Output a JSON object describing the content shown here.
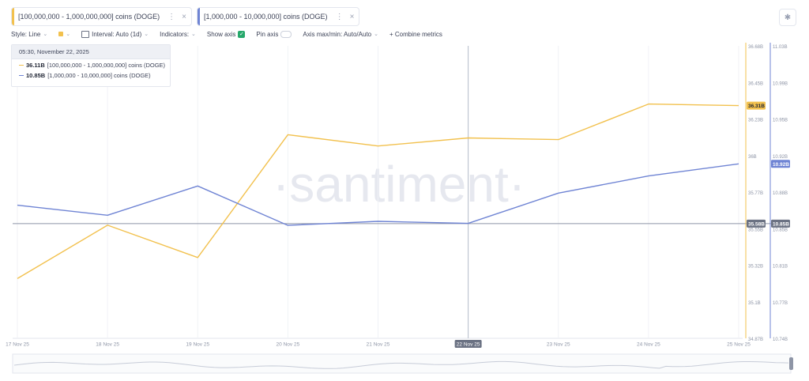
{
  "tabs": [
    {
      "label": "[100,000,000 - 1,000,000,000] coins (DOGE)",
      "color": "#f2c14e",
      "menu": "⋮",
      "close": "×"
    },
    {
      "label": "[1,000,000 - 10,000,000] coins (DOGE)",
      "color": "#6f84d4",
      "menu": "⋮",
      "close": "×"
    }
  ],
  "toolbar": {
    "style_label": "Style: Line",
    "interval_label": "Interval: Auto (1d)",
    "indicators_label": "Indicators:",
    "show_axis_label": "Show axis",
    "pin_axis_label": "Pin axis",
    "axis_maxmin_label": "Axis max/min: Auto/Auto",
    "combine_label": "+ Combine metrics",
    "check_glyph": "✓"
  },
  "settings_icon": "gear-icon",
  "tooltip": {
    "date": "05:30, November 22, 2025",
    "rows": [
      {
        "value": "36.11B",
        "label": "[100,000,000 - 1,000,000,000] coins (DOGE)",
        "color": "#f2c14e"
      },
      {
        "value": "10.85B",
        "label": "[1,000,000 - 10,000,000] coins (DOGE)",
        "color": "#6f84d4"
      }
    ]
  },
  "watermark": "·santiment·",
  "chart_data": {
    "type": "line",
    "categories": [
      "17 Nov 25",
      "18 Nov 25",
      "19 Nov 25",
      "20 Nov 25",
      "21 Nov 25",
      "22 Nov 25",
      "23 Nov 25",
      "24 Nov 25",
      "25 Nov 25"
    ],
    "series": [
      {
        "name": "[100,000,000 - 1,000,000,000] coins (DOGE)",
        "color": "#f2c14e",
        "axis": "left",
        "values": [
          35.24,
          35.57,
          35.37,
          36.13,
          36.06,
          36.11,
          36.1,
          36.32,
          36.31
        ]
      },
      {
        "name": "[1,000,000 - 10,000,000] coins (DOGE)",
        "color": "#6f84d4",
        "axis": "right",
        "values": [
          10.872,
          10.862,
          10.891,
          10.852,
          10.856,
          10.854,
          10.884,
          10.901,
          10.913
        ]
      }
    ],
    "left_axis": {
      "ticks": [
        "36.68B",
        "36.45B",
        "36.23B",
        "36B",
        "35.77B",
        "35.55B",
        "35.32B",
        "35.1B",
        "34.87B"
      ],
      "min": 34.87,
      "max": 36.68
    },
    "right_axis": {
      "ticks": [
        "11.03B",
        "10.99B",
        "10.95B",
        "10.92B",
        "10.88B",
        "10.85B",
        "10.81B",
        "10.77B",
        "10.74B"
      ],
      "min": 10.74,
      "max": 11.03
    },
    "last_value_badges": {
      "left": "36.31B",
      "right": "10.92B"
    },
    "crosshair": {
      "category": "22 Nov 25",
      "left_value": "35.58B",
      "right_value": "10.85B"
    }
  }
}
